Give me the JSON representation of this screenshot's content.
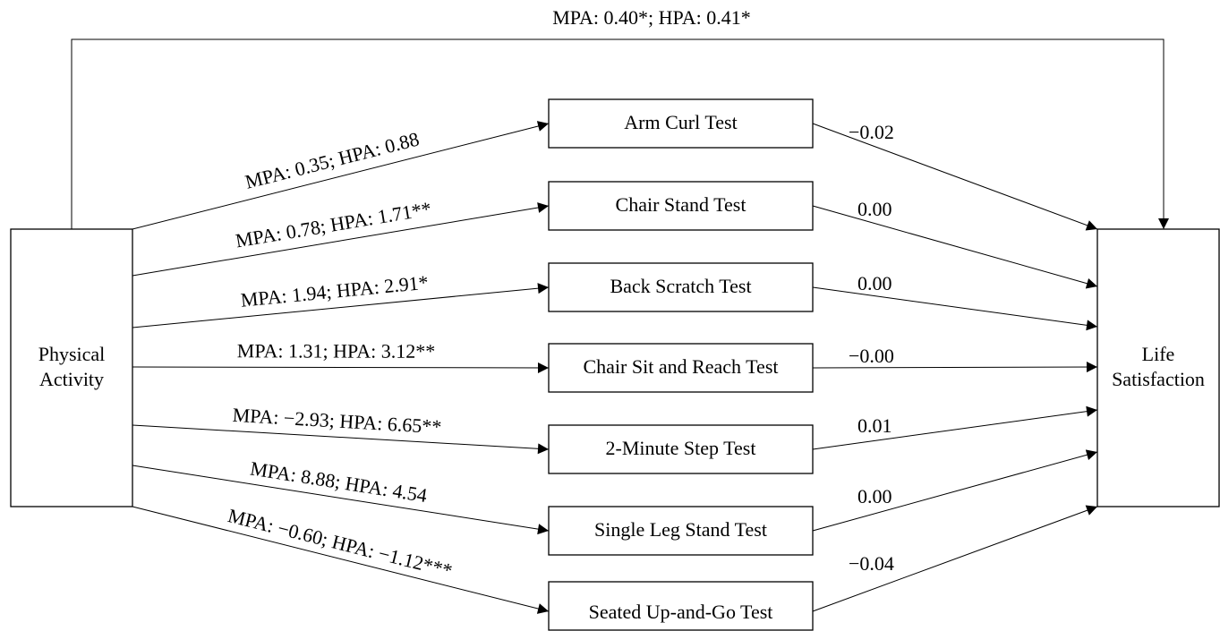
{
  "nodes": {
    "source": {
      "label": [
        "Physical",
        "Activity"
      ]
    },
    "target": {
      "label": [
        "Life",
        "Satisfaction"
      ]
    },
    "mediators": [
      "Arm Curl Test",
      "Chair Stand Test",
      "Back Scratch Test",
      "Chair Sit and Reach Test",
      "2-Minute Step Test",
      "Single Leg Stand Test",
      "Seated Up-and-Go Test"
    ]
  },
  "edges": {
    "direct": "MPA: 0.40*; HPA: 0.41*",
    "a_paths": [
      "MPA: 0.35; HPA: 0.88",
      "MPA: 0.78; HPA: 1.71**",
      "MPA: 1.94; HPA: 2.91*",
      "MPA: 1.31; HPA: 3.12**",
      "MPA: −2.93; HPA: 6.65**",
      "MPA: 8.88; HPA: 4.54",
      "MPA: −0.60; HPA: −1.12***"
    ],
    "b_paths": [
      "−0.02",
      "0.00",
      "0.00",
      "−0.00",
      "0.01",
      "0.00",
      "−0.04"
    ]
  }
}
